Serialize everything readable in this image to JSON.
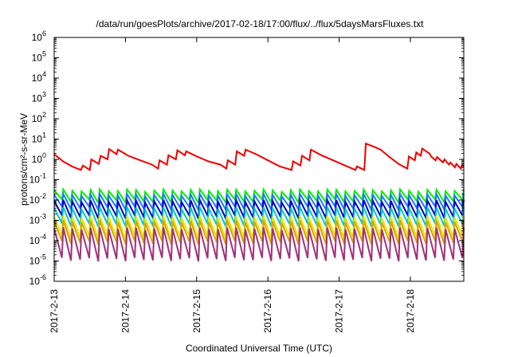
{
  "chart_data": {
    "type": "line",
    "title": "/data/run/goesPlots/archive/2017-02-18/17:00/flux/../flux/5daysMarsFluxes.txt",
    "xlabel": "Coordinated Universal Time (UTC)",
    "ylabel": "protons/cm²-s-sr-MeV",
    "yscale": "log",
    "ylim": [
      1e-06,
      1000000.0
    ],
    "xlim": [
      "2017-02-13 00:00",
      "2017-02-18 18:00"
    ],
    "y_ticks": [
      {
        "value": 1e-06,
        "base": "10",
        "exp": "-6"
      },
      {
        "value": 1e-05,
        "base": "10",
        "exp": "-5"
      },
      {
        "value": 0.0001,
        "base": "10",
        "exp": "-4"
      },
      {
        "value": 0.001,
        "base": "10",
        "exp": "-3"
      },
      {
        "value": 0.01,
        "base": "10",
        "exp": "-2"
      },
      {
        "value": 0.1,
        "base": "10",
        "exp": "-1"
      },
      {
        "value": 1,
        "base": "10",
        "exp": "0"
      },
      {
        "value": 10,
        "base": "10",
        "exp": "1"
      },
      {
        "value": 100,
        "base": "10",
        "exp": "2"
      },
      {
        "value": 1000,
        "base": "10",
        "exp": "3"
      },
      {
        "value": 10000,
        "base": "10",
        "exp": "4"
      },
      {
        "value": 100000,
        "base": "10",
        "exp": "5"
      },
      {
        "value": 1000000,
        "base": "10",
        "exp": "6"
      }
    ],
    "x_ticks": [
      "2017-2-13",
      "2017-2-14",
      "2017-2-15",
      "2017-2-16",
      "2017-2-17",
      "2017-2-18"
    ],
    "grid": false,
    "series": [
      {
        "color": "#ee0000",
        "points": [
          [
            "2017-02-13 00:00",
            1.8
          ],
          [
            "2017-02-13 03:00",
            0.8
          ],
          [
            "2017-02-13 06:00",
            0.45
          ],
          [
            "2017-02-13 09:00",
            0.3
          ],
          [
            "2017-02-13 09:40",
            0.5
          ],
          [
            "2017-02-13 12:00",
            0.3
          ],
          [
            "2017-02-13 12:30",
            1.0
          ],
          [
            "2017-02-13 15:00",
            0.6
          ],
          [
            "2017-02-13 15:40",
            1.5
          ],
          [
            "2017-02-13 18:00",
            1.0
          ],
          [
            "2017-02-13 18:30",
            3.2
          ],
          [
            "2017-02-13 21:00",
            1.8
          ],
          [
            "2017-02-13 21:30",
            3.0
          ],
          [
            "2017-02-14 01:00",
            1.5
          ],
          [
            "2017-02-14 05:00",
            0.9
          ],
          [
            "2017-02-14 09:00",
            0.55
          ],
          [
            "2017-02-14 11:00",
            0.35
          ],
          [
            "2017-02-14 11:30",
            0.9
          ],
          [
            "2017-02-14 14:00",
            0.55
          ],
          [
            "2017-02-14 14:30",
            1.6
          ],
          [
            "2017-02-14 17:00",
            1.0
          ],
          [
            "2017-02-14 17:30",
            2.8
          ],
          [
            "2017-02-14 20:00",
            1.6
          ],
          [
            "2017-02-14 20:30",
            2.5
          ],
          [
            "2017-02-15 00:00",
            1.4
          ],
          [
            "2017-02-15 04:00",
            0.8
          ],
          [
            "2017-02-15 08:00",
            0.55
          ],
          [
            "2017-02-15 10:00",
            0.35
          ],
          [
            "2017-02-15 10:30",
            0.9
          ],
          [
            "2017-02-15 13:00",
            0.55
          ],
          [
            "2017-02-15 13:30",
            2.5
          ],
          [
            "2017-02-15 16:00",
            1.5
          ],
          [
            "2017-02-15 16:30",
            3.0
          ],
          [
            "2017-02-15 20:00",
            1.8
          ],
          [
            "2017-02-16 00:00",
            0.9
          ],
          [
            "2017-02-16 04:00",
            0.45
          ],
          [
            "2017-02-16 08:00",
            0.3
          ],
          [
            "2017-02-16 08:30",
            0.8
          ],
          [
            "2017-02-16 11:00",
            0.5
          ],
          [
            "2017-02-16 11:30",
            1.5
          ],
          [
            "2017-02-16 14:00",
            0.9
          ],
          [
            "2017-02-16 14:30",
            3.0
          ],
          [
            "2017-02-16 18:00",
            1.6
          ],
          [
            "2017-02-16 22:00",
            0.9
          ],
          [
            "2017-02-17 02:00",
            0.5
          ],
          [
            "2017-02-17 05:30",
            0.3
          ],
          [
            "2017-02-17 06:00",
            0.45
          ],
          [
            "2017-02-17 08:30",
            0.3
          ],
          [
            "2017-02-17 09:00",
            6.0
          ],
          [
            "2017-02-17 12:00",
            4.0
          ],
          [
            "2017-02-17 14:00",
            3.0
          ],
          [
            "2017-02-17 17:00",
            1.3
          ],
          [
            "2017-02-17 20:00",
            0.6
          ],
          [
            "2017-02-17 23:00",
            0.35
          ],
          [
            "2017-02-17 23:30",
            1.4
          ],
          [
            "2017-02-18 01:30",
            0.9
          ],
          [
            "2017-02-18 02:00",
            2.2
          ],
          [
            "2017-02-18 03:30",
            1.5
          ],
          [
            "2017-02-18 04:00",
            3.4
          ],
          [
            "2017-02-18 06:30",
            1.9
          ],
          [
            "2017-02-18 07:00",
            1.4
          ],
          [
            "2017-02-18 08:30",
            0.9
          ],
          [
            "2017-02-18 09:00",
            1.3
          ],
          [
            "2017-02-18 11:00",
            0.7
          ],
          [
            "2017-02-18 11:30",
            1.0
          ],
          [
            "2017-02-18 13:00",
            0.55
          ],
          [
            "2017-02-18 13:30",
            0.7
          ],
          [
            "2017-02-18 15:00",
            0.4
          ],
          [
            "2017-02-18 15:30",
            0.6
          ],
          [
            "2017-02-18 17:00",
            0.35
          ],
          [
            "2017-02-18 17:30",
            0.55
          ],
          [
            "2017-02-18 18:00",
            0.4
          ]
        ]
      },
      {
        "color": "#00ee00",
        "sawtooth": {
          "first": "2017-02-13 00:00",
          "last": "2017-02-18 18:00",
          "peaks": 45,
          "high": 0.03,
          "low": 0.009
        }
      },
      {
        "color": "#1f78ff",
        "sawtooth": {
          "first": "2017-02-13 00:00",
          "last": "2017-02-18 18:00",
          "peaks": 45,
          "high": 0.018,
          "low": 0.004
        }
      },
      {
        "color": "#0000cc",
        "sawtooth": {
          "first": "2017-02-13 00:00",
          "last": "2017-02-18 18:00",
          "peaks": 45,
          "high": 0.009,
          "low": 0.0015
        }
      },
      {
        "color": "#00c8c8",
        "sawtooth": {
          "first": "2017-02-13 00:00",
          "last": "2017-02-18 18:00",
          "peaks": 45,
          "high": 0.004,
          "low": 0.0006
        }
      },
      {
        "color": "#e8e800",
        "sawtooth": {
          "first": "2017-02-13 00:00",
          "last": "2017-02-18 18:00",
          "peaks": 45,
          "high": 0.0015,
          "low": 0.00015
        }
      },
      {
        "color": "#d9a300",
        "sawtooth": {
          "first": "2017-02-13 00:00",
          "last": "2017-02-18 18:00",
          "peaks": 45,
          "high": 0.0009,
          "low": 8e-05
        }
      },
      {
        "color": "#a0307a",
        "sawtooth": {
          "first": "2017-02-13 00:00",
          "last": "2017-02-18 18:00",
          "peaks": 45,
          "high": 0.0004,
          "low": 1.2e-05
        }
      }
    ]
  }
}
